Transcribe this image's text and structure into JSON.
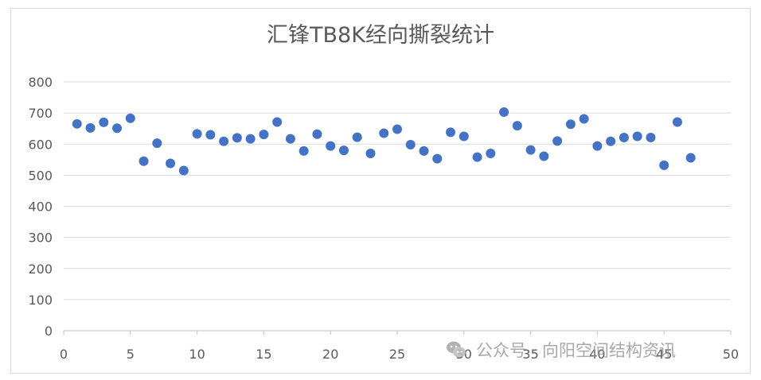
{
  "chart_data": {
    "type": "scatter",
    "title": "汇锋TB8K经向撕裂统计",
    "xlabel": "",
    "ylabel": "",
    "xlim": [
      0,
      50
    ],
    "ylim": [
      0,
      800
    ],
    "x_ticks": [
      0,
      5,
      10,
      15,
      20,
      25,
      30,
      35,
      40,
      45,
      50
    ],
    "y_ticks": [
      0,
      100,
      200,
      300,
      400,
      500,
      600,
      700,
      800
    ],
    "grid": "horizontal",
    "legend": "none",
    "marker_color": "#4472c4",
    "points": [
      {
        "x": 1,
        "y": 665
      },
      {
        "x": 2,
        "y": 652
      },
      {
        "x": 3,
        "y": 670
      },
      {
        "x": 4,
        "y": 651
      },
      {
        "x": 5,
        "y": 683
      },
      {
        "x": 6,
        "y": 545
      },
      {
        "x": 7,
        "y": 603
      },
      {
        "x": 8,
        "y": 538
      },
      {
        "x": 9,
        "y": 515
      },
      {
        "x": 10,
        "y": 633
      },
      {
        "x": 11,
        "y": 630
      },
      {
        "x": 12,
        "y": 609
      },
      {
        "x": 13,
        "y": 620
      },
      {
        "x": 14,
        "y": 617
      },
      {
        "x": 15,
        "y": 631
      },
      {
        "x": 16,
        "y": 671
      },
      {
        "x": 17,
        "y": 617
      },
      {
        "x": 18,
        "y": 578
      },
      {
        "x": 19,
        "y": 632
      },
      {
        "x": 20,
        "y": 594
      },
      {
        "x": 21,
        "y": 580
      },
      {
        "x": 22,
        "y": 622
      },
      {
        "x": 23,
        "y": 570
      },
      {
        "x": 24,
        "y": 635
      },
      {
        "x": 25,
        "y": 648
      },
      {
        "x": 26,
        "y": 598
      },
      {
        "x": 27,
        "y": 578
      },
      {
        "x": 28,
        "y": 553
      },
      {
        "x": 29,
        "y": 638
      },
      {
        "x": 30,
        "y": 625
      },
      {
        "x": 31,
        "y": 558
      },
      {
        "x": 32,
        "y": 570
      },
      {
        "x": 33,
        "y": 703
      },
      {
        "x": 34,
        "y": 659
      },
      {
        "x": 35,
        "y": 581
      },
      {
        "x": 36,
        "y": 561
      },
      {
        "x": 37,
        "y": 610
      },
      {
        "x": 38,
        "y": 664
      },
      {
        "x": 39,
        "y": 681
      },
      {
        "x": 40,
        "y": 594
      },
      {
        "x": 41,
        "y": 609
      },
      {
        "x": 42,
        "y": 621
      },
      {
        "x": 43,
        "y": 625
      },
      {
        "x": 44,
        "y": 621
      },
      {
        "x": 45,
        "y": 532
      },
      {
        "x": 46,
        "y": 671
      },
      {
        "x": 47,
        "y": 556
      }
    ]
  },
  "watermark": {
    "text": "公众号 · 向阳空间结构资讯",
    "icon": "wechat-icon"
  }
}
